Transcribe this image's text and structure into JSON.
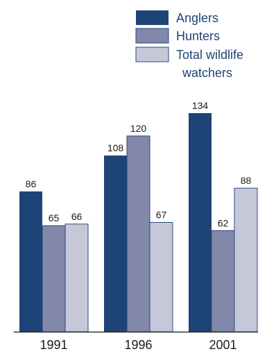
{
  "chart_data": {
    "type": "bar",
    "title": "",
    "xlabel": "",
    "ylabel": "",
    "categories": [
      "1991",
      "1996",
      "2001"
    ],
    "series": [
      {
        "name": "Anglers",
        "values": [
          86,
          108,
          134
        ],
        "color": "#1e4376"
      },
      {
        "name": "Hunters",
        "values": [
          65,
          120,
          62
        ],
        "color": "#8288aa"
      },
      {
        "name": "Total wildlife watchers",
        "values": [
          66,
          67,
          88
        ],
        "color": "#c6c8da"
      }
    ],
    "legend": {
      "position": "top-right",
      "lines": [
        [
          "Anglers"
        ],
        [
          "Hunters"
        ],
        [
          "Total wildlife",
          "watchers"
        ]
      ]
    },
    "ylim": [
      0,
      134
    ],
    "grid": false,
    "value_labels": true
  }
}
